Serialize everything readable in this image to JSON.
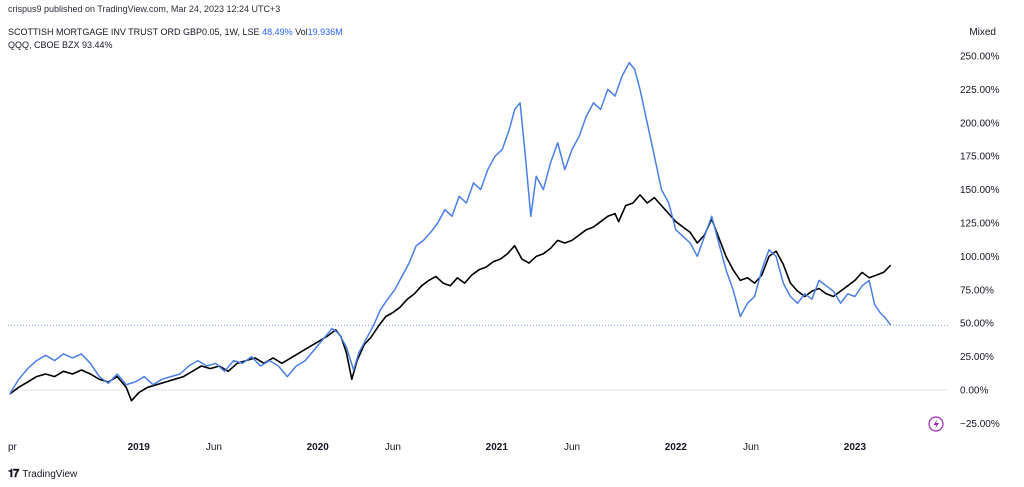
{
  "header": {
    "byline": "crispus9 published on TradingView.com, Mar 24, 2023 12:24 UTC+3"
  },
  "legend": {
    "series1_name": "SCOTTISH MORTGAGE INV TRUST ORD GBP0.05, 1W, LSE",
    "series1_value": "48.49%",
    "series1_vol_label": "Vol",
    "series1_vol_value": "19.936M",
    "series2_name": "QQQ, CBOE BZX",
    "series2_value": "93.44%"
  },
  "scale_mode": "Mixed",
  "footer": {
    "logo_text": "TradingView"
  },
  "colors": {
    "smt": "#4a7fe8",
    "qqq": "#000000",
    "dotted_line": "#4a7fe8",
    "flash_icon": "#9c27b0"
  },
  "chart_data": {
    "type": "line",
    "ylim": [
      -30,
      262
    ],
    "y_ticks": [
      250,
      225,
      200,
      175,
      150,
      125,
      100,
      75,
      50,
      25,
      0,
      -25
    ],
    "y_tick_labels": [
      "250.00%",
      "225.00%",
      "200.00%",
      "175.00%",
      "150.00%",
      "125.00%",
      "100.00%",
      "75.00%",
      "50.00%",
      "25.00%",
      "0.00%",
      "−25.00%"
    ],
    "x_tick_labels": [
      {
        "label": "pr",
        "t": 2018.27,
        "bold": false
      },
      {
        "label": "2019",
        "t": 2019.0,
        "bold": true
      },
      {
        "label": "Jun",
        "t": 2019.42,
        "bold": false
      },
      {
        "label": "2020",
        "t": 2020.0,
        "bold": true
      },
      {
        "label": "Jun",
        "t": 2020.42,
        "bold": false
      },
      {
        "label": "2021",
        "t": 2021.0,
        "bold": true
      },
      {
        "label": "Jun",
        "t": 2021.42,
        "bold": false
      },
      {
        "label": "2022",
        "t": 2022.0,
        "bold": true
      },
      {
        "label": "Jun",
        "t": 2022.42,
        "bold": false
      },
      {
        "label": "2023",
        "t": 2023.0,
        "bold": true
      }
    ],
    "reference_line": 48.49,
    "series": [
      {
        "name": "SCOTTISH MORTGAGE INV TRUST ORD GBP0.05, 1W, LSE",
        "color": "#4a7fe8",
        "points": [
          [
            2018.28,
            -3
          ],
          [
            2018.33,
            8
          ],
          [
            2018.38,
            16
          ],
          [
            2018.43,
            22
          ],
          [
            2018.48,
            26
          ],
          [
            2018.53,
            22
          ],
          [
            2018.58,
            27
          ],
          [
            2018.63,
            24
          ],
          [
            2018.68,
            27
          ],
          [
            2018.73,
            20
          ],
          [
            2018.78,
            10
          ],
          [
            2018.83,
            5
          ],
          [
            2018.88,
            12
          ],
          [
            2018.93,
            4
          ],
          [
            2018.98,
            6
          ],
          [
            2019.03,
            10
          ],
          [
            2019.08,
            4
          ],
          [
            2019.13,
            8
          ],
          [
            2019.18,
            10
          ],
          [
            2019.23,
            12
          ],
          [
            2019.28,
            18
          ],
          [
            2019.33,
            22
          ],
          [
            2019.38,
            18
          ],
          [
            2019.43,
            20
          ],
          [
            2019.48,
            14
          ],
          [
            2019.53,
            22
          ],
          [
            2019.58,
            20
          ],
          [
            2019.63,
            25
          ],
          [
            2019.68,
            18
          ],
          [
            2019.73,
            22
          ],
          [
            2019.78,
            18
          ],
          [
            2019.83,
            10
          ],
          [
            2019.88,
            18
          ],
          [
            2019.93,
            22
          ],
          [
            2019.98,
            30
          ],
          [
            2020.03,
            38
          ],
          [
            2020.08,
            46
          ],
          [
            2020.12,
            42
          ],
          [
            2020.16,
            32
          ],
          [
            2020.2,
            15
          ],
          [
            2020.23,
            28
          ],
          [
            2020.27,
            38
          ],
          [
            2020.31,
            48
          ],
          [
            2020.35,
            60
          ],
          [
            2020.39,
            68
          ],
          [
            2020.43,
            75
          ],
          [
            2020.47,
            85
          ],
          [
            2020.51,
            95
          ],
          [
            2020.55,
            108
          ],
          [
            2020.59,
            112
          ],
          [
            2020.63,
            118
          ],
          [
            2020.67,
            125
          ],
          [
            2020.71,
            135
          ],
          [
            2020.75,
            130
          ],
          [
            2020.79,
            145
          ],
          [
            2020.83,
            140
          ],
          [
            2020.87,
            155
          ],
          [
            2020.91,
            150
          ],
          [
            2020.95,
            165
          ],
          [
            2020.99,
            175
          ],
          [
            2021.03,
            180
          ],
          [
            2021.07,
            195
          ],
          [
            2021.1,
            210
          ],
          [
            2021.13,
            215
          ],
          [
            2021.16,
            175
          ],
          [
            2021.19,
            130
          ],
          [
            2021.22,
            160
          ],
          [
            2021.26,
            150
          ],
          [
            2021.3,
            170
          ],
          [
            2021.34,
            185
          ],
          [
            2021.38,
            165
          ],
          [
            2021.42,
            180
          ],
          [
            2021.46,
            190
          ],
          [
            2021.5,
            205
          ],
          [
            2021.54,
            215
          ],
          [
            2021.58,
            210
          ],
          [
            2021.62,
            225
          ],
          [
            2021.66,
            220
          ],
          [
            2021.7,
            235
          ],
          [
            2021.74,
            245
          ],
          [
            2021.77,
            240
          ],
          [
            2021.8,
            225
          ],
          [
            2021.84,
            200
          ],
          [
            2021.88,
            175
          ],
          [
            2021.92,
            150
          ],
          [
            2021.96,
            140
          ],
          [
            2022.0,
            120
          ],
          [
            2022.04,
            115
          ],
          [
            2022.08,
            110
          ],
          [
            2022.12,
            100
          ],
          [
            2022.16,
            115
          ],
          [
            2022.2,
            130
          ],
          [
            2022.24,
            110
          ],
          [
            2022.28,
            90
          ],
          [
            2022.32,
            75
          ],
          [
            2022.36,
            55
          ],
          [
            2022.4,
            65
          ],
          [
            2022.44,
            70
          ],
          [
            2022.48,
            90
          ],
          [
            2022.52,
            105
          ],
          [
            2022.56,
            100
          ],
          [
            2022.6,
            80
          ],
          [
            2022.64,
            70
          ],
          [
            2022.68,
            65
          ],
          [
            2022.72,
            72
          ],
          [
            2022.76,
            68
          ],
          [
            2022.8,
            82
          ],
          [
            2022.84,
            78
          ],
          [
            2022.88,
            74
          ],
          [
            2022.92,
            65
          ],
          [
            2022.96,
            72
          ],
          [
            2023.0,
            70
          ],
          [
            2023.04,
            78
          ],
          [
            2023.08,
            82
          ],
          [
            2023.11,
            64
          ],
          [
            2023.14,
            58
          ],
          [
            2023.17,
            54
          ],
          [
            2023.2,
            48.49
          ]
        ]
      },
      {
        "name": "QQQ, CBOE BZX",
        "color": "#000000",
        "points": [
          [
            2018.28,
            -3
          ],
          [
            2018.33,
            2
          ],
          [
            2018.38,
            6
          ],
          [
            2018.43,
            10
          ],
          [
            2018.48,
            12
          ],
          [
            2018.53,
            10
          ],
          [
            2018.58,
            14
          ],
          [
            2018.63,
            12
          ],
          [
            2018.68,
            15
          ],
          [
            2018.73,
            12
          ],
          [
            2018.78,
            8
          ],
          [
            2018.83,
            6
          ],
          [
            2018.88,
            10
          ],
          [
            2018.93,
            2
          ],
          [
            2018.96,
            -8
          ],
          [
            2019.0,
            -2
          ],
          [
            2019.05,
            2
          ],
          [
            2019.1,
            4
          ],
          [
            2019.15,
            6
          ],
          [
            2019.2,
            8
          ],
          [
            2019.25,
            10
          ],
          [
            2019.3,
            14
          ],
          [
            2019.35,
            18
          ],
          [
            2019.4,
            16
          ],
          [
            2019.45,
            18
          ],
          [
            2019.5,
            14
          ],
          [
            2019.55,
            20
          ],
          [
            2019.6,
            22
          ],
          [
            2019.65,
            24
          ],
          [
            2019.7,
            20
          ],
          [
            2019.75,
            24
          ],
          [
            2019.8,
            20
          ],
          [
            2019.85,
            24
          ],
          [
            2019.9,
            28
          ],
          [
            2019.95,
            32
          ],
          [
            2020.0,
            36
          ],
          [
            2020.05,
            40
          ],
          [
            2020.1,
            45
          ],
          [
            2020.13,
            40
          ],
          [
            2020.16,
            28
          ],
          [
            2020.19,
            8
          ],
          [
            2020.22,
            22
          ],
          [
            2020.26,
            34
          ],
          [
            2020.3,
            40
          ],
          [
            2020.34,
            48
          ],
          [
            2020.38,
            55
          ],
          [
            2020.42,
            58
          ],
          [
            2020.46,
            62
          ],
          [
            2020.5,
            68
          ],
          [
            2020.54,
            72
          ],
          [
            2020.58,
            78
          ],
          [
            2020.62,
            82
          ],
          [
            2020.66,
            85
          ],
          [
            2020.7,
            80
          ],
          [
            2020.74,
            78
          ],
          [
            2020.78,
            84
          ],
          [
            2020.82,
            80
          ],
          [
            2020.86,
            86
          ],
          [
            2020.9,
            90
          ],
          [
            2020.94,
            92
          ],
          [
            2020.98,
            96
          ],
          [
            2021.02,
            98
          ],
          [
            2021.06,
            102
          ],
          [
            2021.1,
            108
          ],
          [
            2021.14,
            98
          ],
          [
            2021.18,
            95
          ],
          [
            2021.22,
            100
          ],
          [
            2021.26,
            102
          ],
          [
            2021.3,
            106
          ],
          [
            2021.34,
            112
          ],
          [
            2021.38,
            110
          ],
          [
            2021.42,
            112
          ],
          [
            2021.46,
            116
          ],
          [
            2021.5,
            120
          ],
          [
            2021.54,
            122
          ],
          [
            2021.58,
            126
          ],
          [
            2021.62,
            130
          ],
          [
            2021.66,
            132
          ],
          [
            2021.68,
            126
          ],
          [
            2021.72,
            138
          ],
          [
            2021.76,
            140
          ],
          [
            2021.8,
            146
          ],
          [
            2021.84,
            140
          ],
          [
            2021.88,
            144
          ],
          [
            2021.92,
            138
          ],
          [
            2021.96,
            132
          ],
          [
            2022.0,
            126
          ],
          [
            2022.04,
            122
          ],
          [
            2022.08,
            118
          ],
          [
            2022.12,
            110
          ],
          [
            2022.16,
            116
          ],
          [
            2022.2,
            128
          ],
          [
            2022.24,
            114
          ],
          [
            2022.28,
            100
          ],
          [
            2022.32,
            90
          ],
          [
            2022.36,
            82
          ],
          [
            2022.4,
            84
          ],
          [
            2022.44,
            80
          ],
          [
            2022.48,
            86
          ],
          [
            2022.52,
            100
          ],
          [
            2022.56,
            104
          ],
          [
            2022.6,
            94
          ],
          [
            2022.64,
            80
          ],
          [
            2022.68,
            74
          ],
          [
            2022.72,
            70
          ],
          [
            2022.76,
            74
          ],
          [
            2022.8,
            76
          ],
          [
            2022.84,
            72
          ],
          [
            2022.88,
            70
          ],
          [
            2022.92,
            74
          ],
          [
            2022.96,
            78
          ],
          [
            2023.0,
            82
          ],
          [
            2023.04,
            88
          ],
          [
            2023.08,
            84
          ],
          [
            2023.12,
            86
          ],
          [
            2023.16,
            88
          ],
          [
            2023.2,
            93.44
          ]
        ]
      }
    ]
  }
}
